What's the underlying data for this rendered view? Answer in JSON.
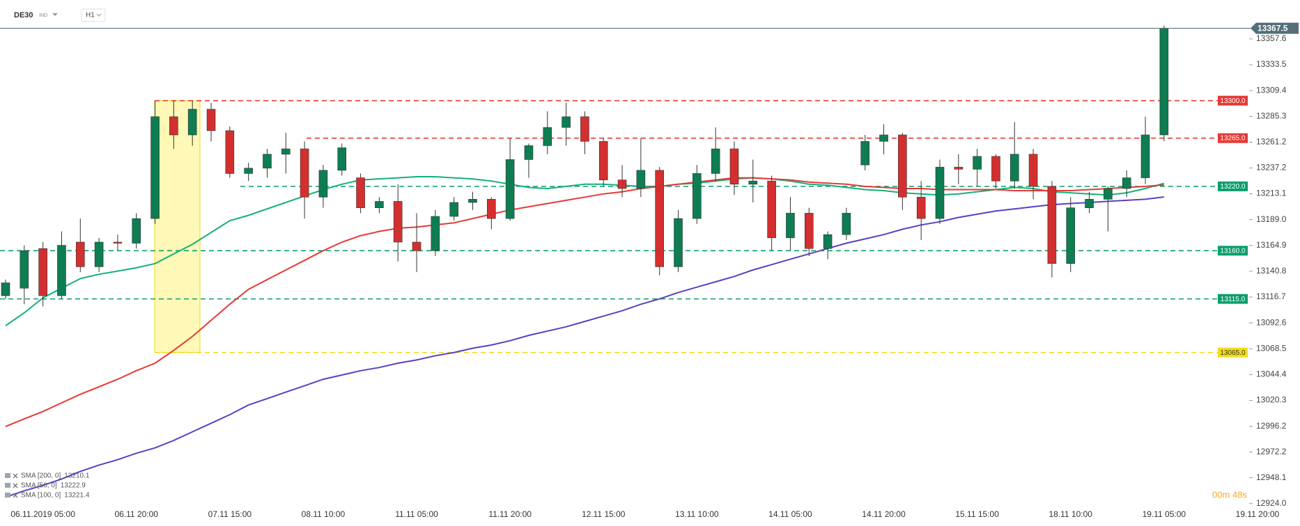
{
  "header": {
    "symbol": "DE30",
    "kind": "IND",
    "timeframe": "H1"
  },
  "timer": "00m 48s",
  "chart_data": {
    "type": "candlestick",
    "up_color": "#0e7d52",
    "down_color": "#d32f2f",
    "categories": [
      null,
      null,
      "06.11.2019 05:00",
      null,
      null,
      null,
      null,
      "06.11 20:00",
      null,
      null,
      null,
      null,
      "07.11 15:00",
      null,
      null,
      null,
      null,
      "08.11 10:00",
      null,
      null,
      null,
      null,
      "11.11 05:00",
      null,
      null,
      null,
      null,
      "11.11 20:00",
      null,
      null,
      null,
      null,
      "12.11 15:00",
      null,
      null,
      null,
      null,
      "13.11 10:00",
      null,
      null,
      null,
      null,
      "14.11 05:00",
      null,
      null,
      null,
      null,
      "14.11 20:00",
      null,
      null,
      null,
      null,
      "15.11 15:00",
      null,
      null,
      null,
      null,
      "18.11 10:00",
      null,
      null,
      null,
      null,
      "19.11 05:00",
      null,
      null,
      null,
      null,
      "19.11 20:00"
    ],
    "open": [
      13118,
      13125,
      13162,
      13118,
      13168,
      13145,
      13168,
      13167,
      13190,
      13285,
      13268,
      13292,
      13272,
      13232,
      13237,
      13250,
      13255,
      13210,
      13235,
      13228,
      13200,
      13206,
      13168,
      13160,
      13192,
      13205,
      13208,
      13190,
      13245,
      13258,
      13275,
      13285,
      13262,
      13226,
      13218,
      13235,
      13145,
      13190,
      13232,
      13255,
      13222,
      13225,
      13172,
      13195,
      13162,
      13175,
      13240,
      13262,
      13268,
      13210,
      13190,
      13238,
      13236,
      13248,
      13225,
      13250,
      13220,
      13148,
      13200,
      13208,
      13218,
      13228,
      13268,
      null,
      null,
      null,
      null,
      null
    ],
    "high": [
      13133,
      13165,
      13168,
      13178,
      13190,
      13172,
      13175,
      13195,
      13300,
      13300,
      13300,
      13298,
      13276,
      13242,
      13255,
      13270,
      13262,
      13240,
      13260,
      13232,
      13210,
      13222,
      13195,
      13198,
      13210,
      13215,
      13210,
      13265,
      13260,
      13290,
      13298,
      13290,
      13265,
      13240,
      13265,
      13238,
      13198,
      13240,
      13275,
      13262,
      13245,
      13230,
      13210,
      13200,
      13178,
      13200,
      13268,
      13278,
      13270,
      13225,
      13245,
      13250,
      13255,
      13250,
      13280,
      13255,
      13225,
      13210,
      13215,
      13220,
      13235,
      13285,
      13370,
      null,
      null,
      null,
      null,
      null
    ],
    "low": [
      13115,
      13110,
      13108,
      13115,
      13140,
      13140,
      13160,
      13162,
      13185,
      13255,
      13258,
      13262,
      13228,
      13225,
      13228,
      13232,
      13190,
      13200,
      13230,
      13195,
      13195,
      13150,
      13140,
      13155,
      13188,
      13198,
      13180,
      13188,
      13228,
      13250,
      13258,
      13250,
      13220,
      13210,
      13210,
      13137,
      13140,
      13185,
      13225,
      13212,
      13205,
      13160,
      13160,
      13155,
      13152,
      13170,
      13235,
      13250,
      13198,
      13170,
      13185,
      13222,
      13220,
      13218,
      13218,
      13208,
      13135,
      13140,
      13195,
      13178,
      13210,
      13222,
      13262,
      null,
      null,
      null,
      null,
      null
    ],
    "close": [
      13130,
      13160,
      13118,
      13165,
      13145,
      13168,
      13167,
      13190,
      13285,
      13268,
      13292,
      13272,
      13232,
      13237,
      13250,
      13255,
      13210,
      13235,
      13256,
      13200,
      13206,
      13168,
      13160,
      13192,
      13205,
      13208,
      13190,
      13245,
      13258,
      13275,
      13285,
      13262,
      13226,
      13218,
      13235,
      13145,
      13190,
      13232,
      13255,
      13222,
      13225,
      13172,
      13195,
      13162,
      13175,
      13195,
      13262,
      13268,
      13210,
      13190,
      13238,
      13236,
      13248,
      13225,
      13250,
      13220,
      13148,
      13200,
      13208,
      13218,
      13228,
      13268,
      13367.5,
      null,
      null,
      null,
      null,
      null
    ],
    "series": [
      {
        "name": "SMA [200, 0]",
        "color": "#5b3fc4",
        "values": [
          12930,
          12936,
          12941,
          12947,
          12954,
          12960,
          12965,
          12971,
          12976,
          12983,
          12991,
          12999,
          13007,
          13016,
          13022,
          13028,
          13034,
          13040,
          13044,
          13048,
          13051,
          13055,
          13058,
          13062,
          13065,
          13069,
          13072,
          13076,
          13081,
          13085,
          13089,
          13094,
          13099,
          13104,
          13110,
          13115,
          13121,
          13126,
          13131,
          13136,
          13142,
          13147,
          13152,
          13157,
          13162,
          13167,
          13171,
          13175,
          13180,
          13184,
          13187,
          13191,
          13194,
          13197,
          13199,
          13201,
          13203,
          13204,
          13205,
          13206,
          13207,
          13208,
          13210.1,
          null,
          null,
          null,
          null,
          null
        ]
      },
      {
        "name": "SMA [50, 0]",
        "color": "#13b07a",
        "values": [
          13090,
          13102,
          13116,
          13125,
          13134,
          13138,
          13141,
          13144,
          13148,
          13157,
          13166,
          13177,
          13188,
          13193,
          13199,
          13205,
          13211,
          13217,
          13222,
          13226,
          13227,
          13228,
          13229,
          13229,
          13228,
          13227,
          13225,
          13222,
          13219,
          13218,
          13220,
          13222,
          13222,
          13221,
          13220,
          13220,
          13222,
          13223,
          13225,
          13227,
          13228,
          13227,
          13225,
          13222,
          13221,
          13219,
          13217,
          13216,
          13214,
          13213,
          13212,
          13213,
          13215,
          13217,
          13219,
          13218,
          13215,
          13214,
          13213,
          13212,
          13214,
          13218,
          13222.9,
          null,
          null,
          null,
          null,
          null
        ]
      },
      {
        "name": "SMA [100, 0]",
        "color": "#e53935",
        "values": [
          12996,
          13003,
          13010,
          13018,
          13026,
          13033,
          13040,
          13048,
          13055,
          13067,
          13080,
          13095,
          13110,
          13124,
          13133,
          13142,
          13151,
          13160,
          13168,
          13174,
          13178,
          13181,
          13182,
          13184,
          13186,
          13190,
          13194,
          13198,
          13201,
          13204,
          13207,
          13210,
          13213,
          13215,
          13218,
          13220,
          13222,
          13224,
          13226,
          13228,
          13228,
          13227,
          13226,
          13224,
          13223,
          13222,
          13220,
          13219,
          13218,
          13218,
          13217,
          13217,
          13217,
          13217,
          13216,
          13216,
          13216,
          13216,
          13217,
          13218,
          13219,
          13220,
          13221.4,
          null,
          null,
          null,
          null,
          null
        ]
      }
    ],
    "ylim": [
      12918.7,
      13393.9
    ],
    "yticks": [
      13357.6,
      13333.5,
      13309.4,
      13285.3,
      13261.2,
      13237.2,
      13213.1,
      {
        "value": 13189,
        "label": "13189.0"
      },
      13164.9,
      13140.8,
      13116.7,
      13092.6,
      13068.5,
      13044.4,
      13020.3,
      12996.2,
      12972.2,
      12948.1,
      {
        "value": 12924,
        "label": "12924.0"
      }
    ],
    "last_price": 13367.5,
    "last_price_color": "#546e7a",
    "levels": [
      {
        "value": 13300,
        "label": "13300.0",
        "color": "#e53935"
      },
      {
        "value": 13265,
        "label": "13265.0",
        "color": "#e53935"
      },
      {
        "value": 13220,
        "label": "13220.0",
        "color": "#0a9e6b"
      },
      {
        "value": 13160,
        "label": "13160.0",
        "color": "#0a9e6b"
      },
      {
        "value": 13115,
        "label": "13115.0",
        "color": "#0a9e6b"
      },
      {
        "value": 13065,
        "label": "13065.0",
        "color": "#f2dc1a"
      }
    ]
  }
}
